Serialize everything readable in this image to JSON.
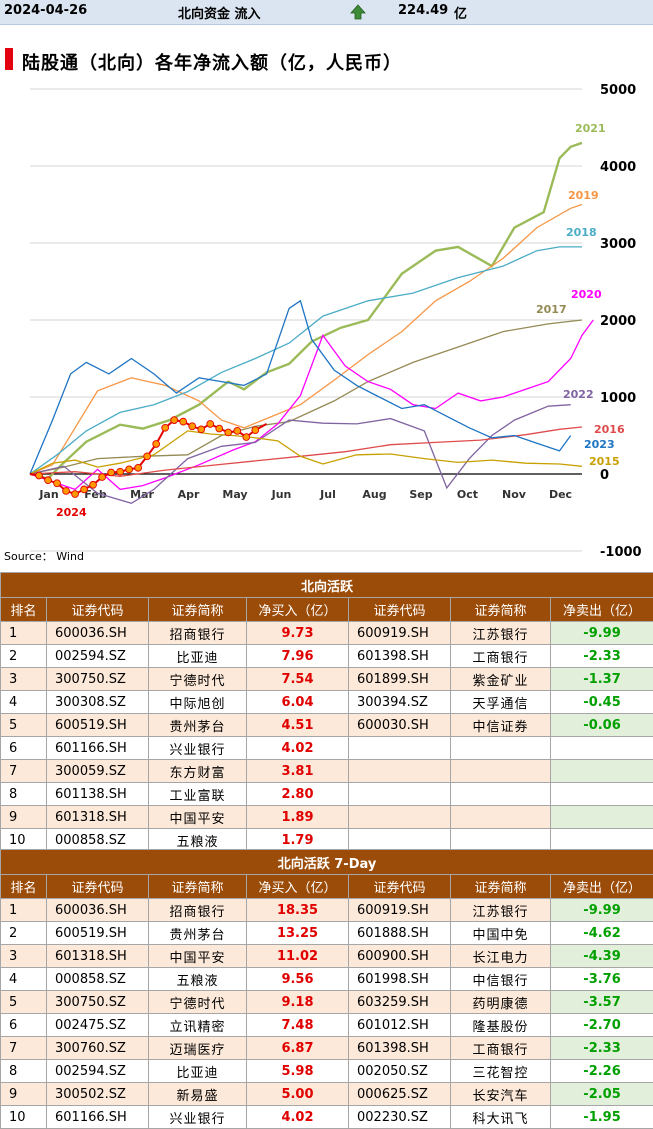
{
  "topbar": {
    "date": "2024-04-26",
    "label": "北向资金 流入",
    "arrow_icon": "up-arrow-icon",
    "value": "224.49",
    "unit": "亿"
  },
  "chart_data": {
    "type": "line",
    "title": "陆股通（北向）各年净流入额（亿，人民币）",
    "source": "Source： Wind",
    "ylim": [
      -1000,
      5000
    ],
    "yticks": [
      "5000",
      "4000",
      "3000",
      "2000",
      "1000",
      "0",
      "-1000"
    ],
    "ytick_values": [
      5000,
      4000,
      3000,
      2000,
      1000,
      0,
      -1000
    ],
    "months": [
      "Jan",
      "Feb",
      "Mar",
      "Apr",
      "May",
      "Jun",
      "Jul",
      "Aug",
      "Sep",
      "Oct",
      "Nov",
      "Dec"
    ],
    "x_unit": "trading day",
    "x_max": 245,
    "y_axis_position": "right",
    "grid": true,
    "series": [
      {
        "name": "2021",
        "color": "#9bbb59",
        "points": [
          [
            0,
            0
          ],
          [
            8,
            -60
          ],
          [
            14,
            120
          ],
          [
            25,
            420
          ],
          [
            40,
            640
          ],
          [
            50,
            590
          ],
          [
            62,
            700
          ],
          [
            75,
            900
          ],
          [
            88,
            1200
          ],
          [
            95,
            1100
          ],
          [
            105,
            1320
          ],
          [
            115,
            1430
          ],
          [
            125,
            1720
          ],
          [
            138,
            1900
          ],
          [
            150,
            2000
          ],
          [
            165,
            2600
          ],
          [
            180,
            2900
          ],
          [
            190,
            2950
          ],
          [
            205,
            2700
          ],
          [
            215,
            3200
          ],
          [
            228,
            3400
          ],
          [
            235,
            4100
          ],
          [
            240,
            4250
          ],
          [
            245,
            4300
          ]
        ]
      },
      {
        "name": "2019",
        "color": "#f79646",
        "points": [
          [
            0,
            0
          ],
          [
            10,
            120
          ],
          [
            20,
            600
          ],
          [
            30,
            1080
          ],
          [
            45,
            1250
          ],
          [
            60,
            1150
          ],
          [
            75,
            950
          ],
          [
            85,
            700
          ],
          [
            95,
            600
          ],
          [
            105,
            720
          ],
          [
            120,
            900
          ],
          [
            135,
            1220
          ],
          [
            150,
            1550
          ],
          [
            165,
            1850
          ],
          [
            180,
            2250
          ],
          [
            195,
            2500
          ],
          [
            210,
            2800
          ],
          [
            225,
            3200
          ],
          [
            240,
            3450
          ],
          [
            245,
            3500
          ]
        ]
      },
      {
        "name": "2018",
        "color": "#4bacc6",
        "points": [
          [
            0,
            0
          ],
          [
            12,
            250
          ],
          [
            25,
            560
          ],
          [
            40,
            800
          ],
          [
            55,
            900
          ],
          [
            70,
            1070
          ],
          [
            85,
            1320
          ],
          [
            100,
            1500
          ],
          [
            115,
            1700
          ],
          [
            130,
            2050
          ],
          [
            150,
            2250
          ],
          [
            170,
            2350
          ],
          [
            190,
            2550
          ],
          [
            210,
            2700
          ],
          [
            225,
            2900
          ],
          [
            235,
            2950
          ],
          [
            245,
            2950
          ]
        ]
      },
      {
        "name": "2017",
        "color": "#948a54",
        "points": [
          [
            0,
            0
          ],
          [
            15,
            90
          ],
          [
            30,
            200
          ],
          [
            50,
            230
          ],
          [
            70,
            250
          ],
          [
            85,
            500
          ],
          [
            100,
            620
          ],
          [
            115,
            680
          ],
          [
            135,
            950
          ],
          [
            150,
            1200
          ],
          [
            170,
            1450
          ],
          [
            190,
            1650
          ],
          [
            210,
            1850
          ],
          [
            230,
            1950
          ],
          [
            245,
            2000
          ]
        ]
      },
      {
        "name": "2020",
        "color": "#ff00ff",
        "points": [
          [
            0,
            0
          ],
          [
            10,
            -100
          ],
          [
            20,
            -200
          ],
          [
            30,
            60
          ],
          [
            40,
            -200
          ],
          [
            50,
            -150
          ],
          [
            60,
            -50
          ],
          [
            75,
            120
          ],
          [
            90,
            310
          ],
          [
            100,
            420
          ],
          [
            110,
            650
          ],
          [
            120,
            1020
          ],
          [
            130,
            1800
          ],
          [
            140,
            1400
          ],
          [
            150,
            1200
          ],
          [
            160,
            1100
          ],
          [
            170,
            900
          ],
          [
            180,
            850
          ],
          [
            190,
            1050
          ],
          [
            200,
            950
          ],
          [
            210,
            1000
          ],
          [
            220,
            1100
          ],
          [
            230,
            1200
          ],
          [
            240,
            1500
          ],
          [
            245,
            1800
          ],
          [
            250,
            2000
          ]
        ]
      },
      {
        "name": "2022",
        "color": "#8064a2",
        "points": [
          [
            0,
            0
          ],
          [
            15,
            100
          ],
          [
            30,
            -250
          ],
          [
            45,
            -380
          ],
          [
            55,
            -200
          ],
          [
            70,
            200
          ],
          [
            85,
            360
          ],
          [
            100,
            410
          ],
          [
            115,
            700
          ],
          [
            130,
            660
          ],
          [
            145,
            650
          ],
          [
            160,
            720
          ],
          [
            175,
            560
          ],
          [
            185,
            -180
          ],
          [
            195,
            200
          ],
          [
            205,
            500
          ],
          [
            215,
            700
          ],
          [
            230,
            880
          ],
          [
            240,
            900
          ]
        ]
      },
      {
        "name": "2016",
        "color": "#e04b4b",
        "points": [
          [
            0,
            0
          ],
          [
            20,
            30
          ],
          [
            40,
            -30
          ],
          [
            60,
            50
          ],
          [
            80,
            110
          ],
          [
            100,
            170
          ],
          [
            120,
            230
          ],
          [
            140,
            290
          ],
          [
            160,
            380
          ],
          [
            180,
            410
          ],
          [
            200,
            440
          ],
          [
            220,
            510
          ],
          [
            235,
            580
          ],
          [
            245,
            610
          ]
        ]
      },
      {
        "name": "2023",
        "color": "#1f74c3",
        "points": [
          [
            0,
            0
          ],
          [
            10,
            700
          ],
          [
            18,
            1300
          ],
          [
            25,
            1450
          ],
          [
            35,
            1300
          ],
          [
            45,
            1500
          ],
          [
            55,
            1300
          ],
          [
            65,
            1050
          ],
          [
            75,
            1250
          ],
          [
            85,
            1200
          ],
          [
            95,
            1150
          ],
          [
            105,
            1300
          ],
          [
            115,
            2150
          ],
          [
            120,
            2250
          ],
          [
            125,
            1750
          ],
          [
            135,
            1350
          ],
          [
            145,
            1150
          ],
          [
            155,
            1000
          ],
          [
            165,
            850
          ],
          [
            175,
            900
          ],
          [
            185,
            750
          ],
          [
            195,
            600
          ],
          [
            205,
            470
          ],
          [
            215,
            500
          ],
          [
            225,
            400
          ],
          [
            235,
            300
          ],
          [
            240,
            500
          ]
        ]
      },
      {
        "name": "2015",
        "color": "#c8a000",
        "points": [
          [
            0,
            0
          ],
          [
            10,
            140
          ],
          [
            20,
            180
          ],
          [
            30,
            90
          ],
          [
            40,
            140
          ],
          [
            55,
            250
          ],
          [
            70,
            560
          ],
          [
            80,
            520
          ],
          [
            90,
            500
          ],
          [
            100,
            470
          ],
          [
            110,
            430
          ],
          [
            120,
            230
          ],
          [
            130,
            130
          ],
          [
            145,
            250
          ],
          [
            160,
            260
          ],
          [
            175,
            200
          ],
          [
            190,
            150
          ],
          [
            205,
            180
          ],
          [
            220,
            140
          ],
          [
            235,
            130
          ],
          [
            245,
            100
          ]
        ]
      }
    ],
    "highlight": {
      "name": "2024",
      "color": "#e30000",
      "marker_fill": "#ff9a00",
      "points": [
        [
          0,
          0
        ],
        [
          4,
          -20
        ],
        [
          8,
          -80
        ],
        [
          12,
          -120
        ],
        [
          16,
          -220
        ],
        [
          20,
          -260
        ],
        [
          24,
          -200
        ],
        [
          28,
          -140
        ],
        [
          32,
          -40
        ],
        [
          36,
          20
        ],
        [
          40,
          30
        ],
        [
          44,
          60
        ],
        [
          48,
          80
        ],
        [
          52,
          230
        ],
        [
          56,
          390
        ],
        [
          60,
          600
        ],
        [
          64,
          700
        ],
        [
          68,
          680
        ],
        [
          72,
          620
        ],
        [
          76,
          580
        ],
        [
          80,
          650
        ],
        [
          84,
          590
        ],
        [
          88,
          540
        ],
        [
          92,
          560
        ],
        [
          96,
          480
        ],
        [
          100,
          570
        ],
        [
          105,
          650
        ]
      ]
    }
  },
  "buy_sell_table": {
    "title": "北向活跃",
    "headers": [
      "排名",
      "证券代码",
      "证券简称",
      "净买入（亿）",
      "证券代码",
      "证券简称",
      "净卖出（亿）"
    ],
    "rows": [
      {
        "rank": "1",
        "buy_code": "600036.SH",
        "buy_name": "招商银行",
        "buy_value": "9.73",
        "sell_code": "600919.SH",
        "sell_name": "江苏银行",
        "sell_value": "-9.99"
      },
      {
        "rank": "2",
        "buy_code": "002594.SZ",
        "buy_name": "比亚迪",
        "buy_value": "7.96",
        "sell_code": "601398.SH",
        "sell_name": "工商银行",
        "sell_value": "-2.33"
      },
      {
        "rank": "3",
        "buy_code": "300750.SZ",
        "buy_name": "宁德时代",
        "buy_value": "7.54",
        "sell_code": "601899.SH",
        "sell_name": "紫金矿业",
        "sell_value": "-1.37"
      },
      {
        "rank": "4",
        "buy_code": "300308.SZ",
        "buy_name": "中际旭创",
        "buy_value": "6.04",
        "sell_code": "300394.SZ",
        "sell_name": "天孚通信",
        "sell_value": "-0.45"
      },
      {
        "rank": "5",
        "buy_code": "600519.SH",
        "buy_name": "贵州茅台",
        "buy_value": "4.51",
        "sell_code": "600030.SH",
        "sell_name": "中信证券",
        "sell_value": "-0.06"
      },
      {
        "rank": "6",
        "buy_code": "601166.SH",
        "buy_name": "兴业银行",
        "buy_value": "4.02",
        "sell_code": "",
        "sell_name": "",
        "sell_value": ""
      },
      {
        "rank": "7",
        "buy_code": "300059.SZ",
        "buy_name": "东方财富",
        "buy_value": "3.81",
        "sell_code": "",
        "sell_name": "",
        "sell_value": ""
      },
      {
        "rank": "8",
        "buy_code": "601138.SH",
        "buy_name": "工业富联",
        "buy_value": "2.80",
        "sell_code": "",
        "sell_name": "",
        "sell_value": ""
      },
      {
        "rank": "9",
        "buy_code": "601318.SH",
        "buy_name": "中国平安",
        "buy_value": "1.89",
        "sell_code": "",
        "sell_name": "",
        "sell_value": ""
      },
      {
        "rank": "10",
        "buy_code": "000858.SZ",
        "buy_name": "五粮液",
        "buy_value": "1.79",
        "sell_code": "",
        "sell_name": "",
        "sell_value": ""
      }
    ]
  },
  "buy_sell_table_7day": {
    "title": "北向活跃 7-Day",
    "headers": [
      "排名",
      "证券代码",
      "证券简称",
      "净买入（亿）",
      "证券代码",
      "证券简称",
      "净卖出（亿）"
    ],
    "rows": [
      {
        "rank": "1",
        "buy_code": "600036.SH",
        "buy_name": "招商银行",
        "buy_value": "18.35",
        "sell_code": "600919.SH",
        "sell_name": "江苏银行",
        "sell_value": "-9.99"
      },
      {
        "rank": "2",
        "buy_code": "600519.SH",
        "buy_name": "贵州茅台",
        "buy_value": "13.25",
        "sell_code": "601888.SH",
        "sell_name": "中国中免",
        "sell_value": "-4.62"
      },
      {
        "rank": "3",
        "buy_code": "601318.SH",
        "buy_name": "中国平安",
        "buy_value": "11.02",
        "sell_code": "600900.SH",
        "sell_name": "长江电力",
        "sell_value": "-4.39"
      },
      {
        "rank": "4",
        "buy_code": "000858.SZ",
        "buy_name": "五粮液",
        "buy_value": "9.56",
        "sell_code": "601998.SH",
        "sell_name": "中信银行",
        "sell_value": "-3.76"
      },
      {
        "rank": "5",
        "buy_code": "300750.SZ",
        "buy_name": "宁德时代",
        "buy_value": "9.18",
        "sell_code": "603259.SH",
        "sell_name": "药明康德",
        "sell_value": "-3.57"
      },
      {
        "rank": "6",
        "buy_code": "002475.SZ",
        "buy_name": "立讯精密",
        "buy_value": "7.48",
        "sell_code": "601012.SH",
        "sell_name": "隆基股份",
        "sell_value": "-2.70"
      },
      {
        "rank": "7",
        "buy_code": "300760.SZ",
        "buy_name": "迈瑞医疗",
        "buy_value": "6.87",
        "sell_code": "601398.SH",
        "sell_name": "工商银行",
        "sell_value": "-2.33"
      },
      {
        "rank": "8",
        "buy_code": "002594.SZ",
        "buy_name": "比亚迪",
        "buy_value": "5.98",
        "sell_code": "002050.SZ",
        "sell_name": "三花智控",
        "sell_value": "-2.26"
      },
      {
        "rank": "9",
        "buy_code": "300502.SZ",
        "buy_name": "新易盛",
        "buy_value": "5.00",
        "sell_code": "000625.SZ",
        "sell_name": "长安汽车",
        "sell_value": "-2.05"
      },
      {
        "rank": "10",
        "buy_code": "601166.SH",
        "buy_name": "兴业银行",
        "buy_value": "4.02",
        "sell_code": "002230.SZ",
        "sell_name": "科大讯飞",
        "sell_value": "-1.95"
      }
    ]
  }
}
